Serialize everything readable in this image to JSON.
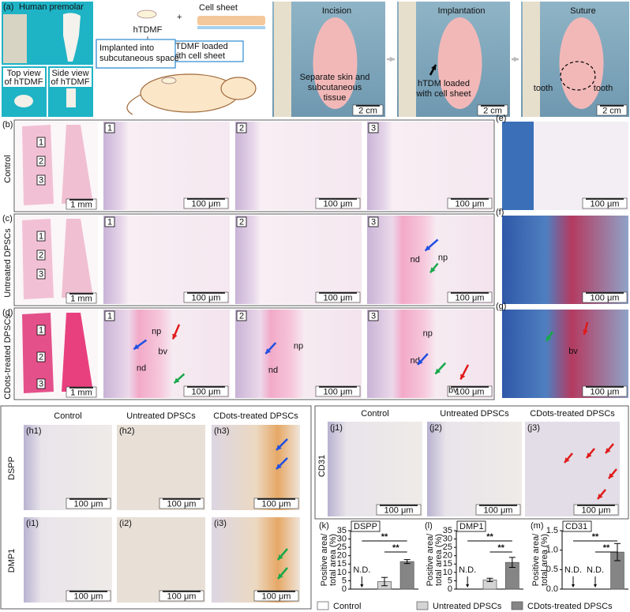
{
  "panel_a": {
    "label": "(a)",
    "title": "Human premolar",
    "top_view": [
      "Top view",
      "of hTDMF"
    ],
    "side_view": [
      "Side view",
      "of hTDMF"
    ]
  },
  "diagram": {
    "htdmf": "hTDMF",
    "cell_sheet": "Cell sheet",
    "loaded": [
      "hTDMF loaded",
      "with cell sheet"
    ],
    "implanted": [
      "Implanted into",
      "subcutaneous space"
    ]
  },
  "photos": [
    {
      "title": "Incision",
      "captions": [
        "Separate skin and",
        "subcutaneous",
        "tissue"
      ],
      "scale": "2 cm"
    },
    {
      "title": "Implantation",
      "captions": [
        "hTDM loaded",
        "with cell sheet"
      ],
      "scale": "2 cm"
    },
    {
      "title": "Suture",
      "captions": [
        "tooth",
        "tooth"
      ],
      "scale": "2 cm"
    }
  ],
  "histology_rows": [
    {
      "label": "(b)",
      "group": "Control",
      "overview_scale": "1 mm",
      "boxes": [
        "1",
        "2",
        "3"
      ],
      "zooms": [
        {
          "num": "1",
          "scale": "100 μm",
          "marks": []
        },
        {
          "num": "2",
          "scale": "100 μm",
          "marks": []
        },
        {
          "num": "3",
          "scale": "100 μm",
          "marks": []
        }
      ],
      "stain": {
        "label": "(e)",
        "scale": "100 μm",
        "marks": []
      }
    },
    {
      "label": "(c)",
      "group": "Untreated DPSCs",
      "overview_scale": "1 mm",
      "boxes": [
        "1",
        "2",
        "3"
      ],
      "zooms": [
        {
          "num": "1",
          "scale": "100 μm",
          "marks": []
        },
        {
          "num": "2",
          "scale": "100 μm",
          "marks": []
        },
        {
          "num": "3",
          "scale": "100 μm",
          "marks": [
            "nd",
            "np"
          ]
        }
      ],
      "stain": {
        "label": "(f)",
        "scale": "100 μm",
        "marks": []
      }
    },
    {
      "label": "(d)",
      "group": "CDots-treated DPSCs",
      "overview_scale": "1 mm",
      "boxes": [
        "1",
        "2",
        "3"
      ],
      "zooms": [
        {
          "num": "1",
          "scale": "100 μm",
          "marks": [
            "np",
            "bv",
            "nd"
          ]
        },
        {
          "num": "2",
          "scale": "100 μm",
          "marks": [
            "np",
            "nd"
          ]
        },
        {
          "num": "3",
          "scale": "100 μm",
          "marks": [
            "np",
            "nd",
            "bv"
          ]
        }
      ],
      "stain": {
        "label": "(g)",
        "scale": "100 μm",
        "marks": [
          "bv"
        ]
      }
    }
  ],
  "ihc": {
    "columns": [
      "Control",
      "Untreated DPSCs",
      "CDots-treated DPSCs"
    ],
    "rows": [
      {
        "marker": "DSPP",
        "panels": [
          "(h1)",
          "(h2)",
          "(h3)"
        ]
      },
      {
        "marker": "DMP1",
        "panels": [
          "(i1)",
          "(i2)",
          "(i3)"
        ]
      }
    ],
    "scale": "100 μm"
  },
  "cd31": {
    "columns": [
      "Control",
      "Untreated DPSCs",
      "CDots-treated DPSCs"
    ],
    "marker": "CD31",
    "panels": [
      "(j1)",
      "(j2)",
      "(j3)"
    ],
    "scale": "100 μm"
  },
  "legend": [
    {
      "name": "Control",
      "color": "#ffffff"
    },
    {
      "name": "Untreated DPSCs",
      "color": "#d4d4d4"
    },
    {
      "name": "CDots-treated DPSCs",
      "color": "#858585"
    }
  ],
  "chart_data": [
    {
      "type": "bar",
      "panel": "(k)",
      "title": "DSPP",
      "ylabel": [
        "Positive area/",
        "total area (%)"
      ],
      "values": [
        null,
        4.5,
        16.5
      ],
      "errors": [
        null,
        2.5,
        1.2
      ],
      "value_labels": [
        "N.D.",
        null,
        null
      ],
      "ylim": [
        0,
        35
      ],
      "yticks": [
        0,
        5,
        10,
        15,
        20,
        25,
        30,
        35
      ],
      "significance": [
        "**",
        "**"
      ]
    },
    {
      "type": "bar",
      "panel": "(l)",
      "title": "DMP1",
      "ylabel": [
        "Positive area/",
        "total area (%)"
      ],
      "values": [
        null,
        5.5,
        16
      ],
      "errors": [
        null,
        1,
        3
      ],
      "value_labels": [
        "N.D.",
        null,
        null
      ],
      "ylim": [
        0,
        35
      ],
      "yticks": [
        0,
        5,
        10,
        15,
        20,
        25,
        30,
        35
      ],
      "significance": [
        "**",
        "**"
      ]
    },
    {
      "type": "bar",
      "panel": "(m)",
      "title": "CD31",
      "ylabel": [
        "Positive area/",
        "total area (%)"
      ],
      "values": [
        null,
        null,
        0.95
      ],
      "errors": [
        null,
        null,
        0.22
      ],
      "value_labels": [
        "N.D.",
        "N.D.",
        null
      ],
      "ylim": [
        0,
        1.5
      ],
      "yticks": [
        {
          "value": 0,
          "label": "0.0"
        },
        0.5,
        {
          "value": 1,
          "label": "1.0"
        },
        1.5
      ],
      "significance": [
        "**",
        "**"
      ]
    }
  ]
}
